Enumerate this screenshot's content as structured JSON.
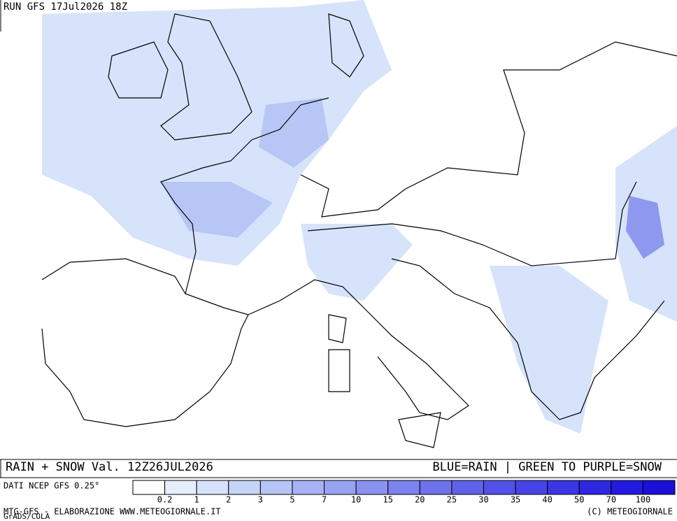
{
  "header": {
    "run": "RUN GFS 17Jul2026 18Z"
  },
  "footer": {
    "field": "RAIN + SNOW Val. 12Z26JUL2026",
    "key": "BLUE=RAIN | GREEN TO PURPLE=SNOW",
    "source": "DATI NCEP GFS 0.25°",
    "credit": "MTG-GFS - ELABORAZIONE WWW.METEOGIORNALE.IT",
    "grads": "GrADS/COLA",
    "copyright": "(C) METEOGIORNALE"
  },
  "legend": {
    "levels": [
      0.2,
      1,
      2,
      3,
      5,
      7,
      10,
      15,
      20,
      25,
      30,
      35,
      40,
      50,
      70,
      100
    ],
    "colors": [
      "#ffffff",
      "#e6eefc",
      "#d6e2fa",
      "#c6d4f8",
      "#b6c4f6",
      "#a6b2f4",
      "#98a2f2",
      "#8a92f0",
      "#7c82ee",
      "#6e72ec",
      "#6062ea",
      "#5252e8",
      "#4644e6",
      "#3a36e4",
      "#2e28e2",
      "#221ae0",
      "#1a10d8"
    ]
  }
}
